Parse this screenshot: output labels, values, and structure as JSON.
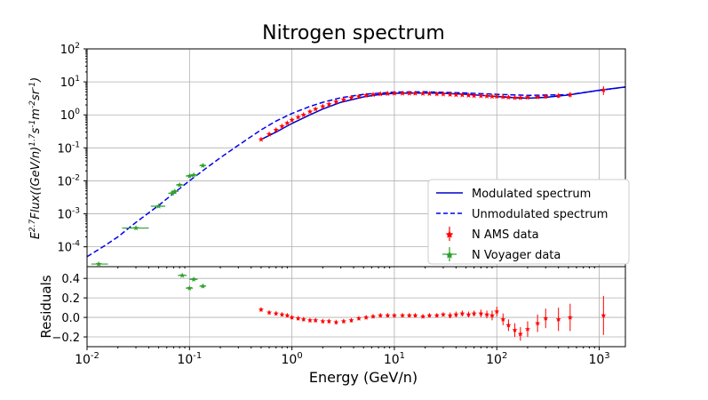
{
  "chart_data": [
    {
      "type": "line",
      "title": "Nitrogen spectrum",
      "xlabel": "Energy (GeV/n)",
      "ylabel_main": "E",
      "ylabel_sup1": "2.7",
      "ylabel_rest": "Flux((GeV/n)",
      "ylabel_sup2": "1.7",
      "ylabel_units": "s",
      "ylabel_sup3": "-1",
      "ylabel_units2": "m",
      "ylabel_sup4": "-2",
      "ylabel_units3": "sr",
      "ylabel_sup5": "-1",
      "ylabel_close": ")",
      "xscale": "log",
      "yscale": "log",
      "xlim": [
        0.01,
        1800
      ],
      "ylim": [
        2.5e-05,
        100
      ],
      "x_ticks": [
        {
          "base": "10",
          "exp": "-2",
          "value": 0.01
        },
        {
          "base": "10",
          "exp": "-1",
          "value": 0.1
        },
        {
          "base": "10",
          "exp": "0",
          "value": 1
        },
        {
          "base": "10",
          "exp": "1",
          "value": 10
        },
        {
          "base": "10",
          "exp": "2",
          "value": 100
        },
        {
          "base": "10",
          "exp": "3",
          "value": 1000
        }
      ],
      "y_ticks": [
        {
          "base": "10",
          "exp": "-4",
          "value": 0.0001
        },
        {
          "base": "10",
          "exp": "-3",
          "value": 0.001
        },
        {
          "base": "10",
          "exp": "-2",
          "value": 0.01
        },
        {
          "base": "10",
          "exp": "-1",
          "value": 0.1
        },
        {
          "base": "10",
          "exp": "0",
          "value": 1
        },
        {
          "base": "10",
          "exp": "1",
          "value": 10
        },
        {
          "base": "10",
          "exp": "2",
          "value": 100
        }
      ],
      "legend": {
        "location": "lower-right",
        "entries": [
          "Modulated spectrum",
          "Unmodulated spectrum",
          "N AMS data",
          "N Voyager data"
        ]
      },
      "series": [
        {
          "name": "Modulated spectrum",
          "style": "solid",
          "color": "#0000cc",
          "x": [
            0.5,
            0.7,
            1,
            1.5,
            2,
            3,
            5,
            7,
            10,
            20,
            30,
            50,
            70,
            100,
            150,
            200,
            300,
            500,
            1000,
            1800
          ],
          "y": [
            0.18,
            0.3,
            0.55,
            1.0,
            1.5,
            2.4,
            3.5,
            4.1,
            4.5,
            4.6,
            4.5,
            4.2,
            3.9,
            3.6,
            3.3,
            3.2,
            3.4,
            4.0,
            5.6,
            7.0
          ]
        },
        {
          "name": "Unmodulated spectrum",
          "style": "dashed",
          "color": "#0000ee",
          "x": [
            0.01,
            0.015,
            0.02,
            0.03,
            0.05,
            0.07,
            0.1,
            0.15,
            0.2,
            0.3,
            0.5,
            0.7,
            1,
            1.5,
            2,
            3,
            5,
            10,
            20,
            50,
            100,
            200,
            500,
            1000,
            1800
          ],
          "y": [
            5e-05,
            0.00011,
            0.0002,
            0.00055,
            0.0018,
            0.0042,
            0.01,
            0.026,
            0.05,
            0.12,
            0.35,
            0.65,
            1.1,
            1.8,
            2.4,
            3.3,
            4.2,
            4.9,
            5.0,
            4.6,
            4.2,
            3.9,
            4.1,
            5.5,
            7.0
          ]
        },
        {
          "name": "N AMS data",
          "color": "#ff0000",
          "x": [
            0.5,
            0.6,
            0.7,
            0.8,
            0.9,
            1.0,
            1.15,
            1.3,
            1.5,
            1.7,
            2.0,
            2.3,
            2.7,
            3.2,
            3.8,
            4.5,
            5.3,
            6.2,
            7.3,
            8.6,
            10,
            12,
            14,
            16,
            19,
            22,
            26,
            30,
            35,
            40,
            46,
            53,
            60,
            70,
            80,
            90,
            100,
            115,
            130,
            150,
            170,
            200,
            250,
            300,
            400,
            520,
            1100
          ],
          "y": [
            0.18,
            0.26,
            0.35,
            0.45,
            0.56,
            0.7,
            0.85,
            1.0,
            1.25,
            1.5,
            1.8,
            2.1,
            2.5,
            2.9,
            3.3,
            3.6,
            3.9,
            4.1,
            4.3,
            4.4,
            4.5,
            4.5,
            4.5,
            4.5,
            4.45,
            4.4,
            4.3,
            4.25,
            4.15,
            4.05,
            4.0,
            3.9,
            3.8,
            3.75,
            3.7,
            3.6,
            3.6,
            3.5,
            3.4,
            3.3,
            3.3,
            3.4,
            3.5,
            3.6,
            3.8,
            4.1,
            5.7
          ],
          "yerr_rel": [
            0.04,
            0.03,
            0.03,
            0.03,
            0.03,
            0.03,
            0.03,
            0.03,
            0.03,
            0.03,
            0.03,
            0.03,
            0.03,
            0.03,
            0.03,
            0.03,
            0.03,
            0.03,
            0.03,
            0.03,
            0.03,
            0.03,
            0.03,
            0.03,
            0.03,
            0.03,
            0.03,
            0.03,
            0.04,
            0.04,
            0.04,
            0.04,
            0.05,
            0.05,
            0.05,
            0.06,
            0.07,
            0.08,
            0.08,
            0.09,
            0.1,
            0.1,
            0.12,
            0.13,
            0.15,
            0.18,
            0.3
          ]
        },
        {
          "name": "N Voyager data",
          "color": "#2ca02c",
          "x": [
            0.013,
            0.03,
            0.05,
            0.068,
            0.072,
            0.08,
            0.1,
            0.11,
            0.135
          ],
          "y": [
            3e-05,
            0.00037,
            0.0017,
            0.0042,
            0.0048,
            0.0075,
            0.014,
            0.015,
            0.029
          ],
          "xerr": [
            [
              0.011,
              0.016
            ],
            [
              0.022,
              0.04
            ],
            [
              0.042,
              0.058
            ],
            [
              0.062,
              0.074
            ],
            [
              0.066,
              0.078
            ],
            [
              0.074,
              0.088
            ],
            [
              0.092,
              0.108
            ],
            [
              0.1,
              0.12
            ],
            [
              0.125,
              0.145
            ]
          ]
        }
      ]
    },
    {
      "type": "scatter",
      "ylabel": "Residuals",
      "xscale": "log",
      "xlim": [
        0.01,
        1800
      ],
      "ylim": [
        -0.3,
        0.52
      ],
      "y_tick_labels": [
        "0.4",
        "0.2",
        "0.0",
        "−0.2"
      ],
      "y_tick_values": [
        0.4,
        0.2,
        0.0,
        -0.2
      ],
      "series": [
        {
          "name": "N Voyager data",
          "color": "#2ca02c",
          "x": [
            0.085,
            0.1,
            0.11,
            0.135
          ],
          "y": [
            0.43,
            0.3,
            0.39,
            0.32
          ],
          "xerr": [
            [
              0.077,
              0.094
            ],
            [
              0.092,
              0.108
            ],
            [
              0.1,
              0.12
            ],
            [
              0.125,
              0.145
            ]
          ]
        },
        {
          "name": "N AMS data",
          "color": "#ff0000",
          "x": [
            0.5,
            0.6,
            0.7,
            0.8,
            0.9,
            1.0,
            1.15,
            1.3,
            1.5,
            1.7,
            2.0,
            2.3,
            2.7,
            3.2,
            3.8,
            4.5,
            5.3,
            6.2,
            7.3,
            8.6,
            10,
            12,
            14,
            16,
            19,
            22,
            26,
            30,
            35,
            40,
            46,
            53,
            60,
            70,
            80,
            90,
            100,
            115,
            130,
            150,
            170,
            200,
            250,
            300,
            400,
            520,
            1100
          ],
          "y": [
            0.08,
            0.05,
            0.04,
            0.03,
            0.02,
            0.0,
            -0.01,
            -0.02,
            -0.03,
            -0.03,
            -0.04,
            -0.04,
            -0.05,
            -0.04,
            -0.03,
            -0.01,
            0.0,
            0.01,
            0.02,
            0.02,
            0.02,
            0.02,
            0.02,
            0.02,
            0.01,
            0.02,
            0.02,
            0.03,
            0.02,
            0.03,
            0.04,
            0.03,
            0.04,
            0.04,
            0.03,
            0.02,
            0.06,
            -0.02,
            -0.08,
            -0.13,
            -0.17,
            -0.12,
            -0.06,
            -0.01,
            -0.02,
            0.0,
            0.02
          ],
          "yerr": [
            0.02,
            0.02,
            0.02,
            0.02,
            0.02,
            0.02,
            0.02,
            0.02,
            0.02,
            0.02,
            0.02,
            0.02,
            0.02,
            0.02,
            0.02,
            0.02,
            0.02,
            0.02,
            0.02,
            0.02,
            0.02,
            0.02,
            0.02,
            0.02,
            0.02,
            0.02,
            0.02,
            0.02,
            0.03,
            0.03,
            0.03,
            0.03,
            0.03,
            0.04,
            0.04,
            0.05,
            0.05,
            0.06,
            0.06,
            0.07,
            0.07,
            0.08,
            0.09,
            0.1,
            0.12,
            0.14,
            0.2
          ]
        }
      ]
    }
  ]
}
